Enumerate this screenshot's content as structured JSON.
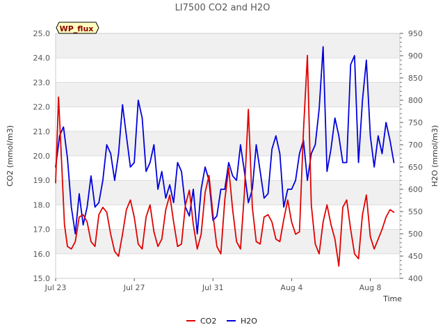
{
  "chart_data": {
    "type": "line",
    "title": "LI7500 CO2 and H2O",
    "xlabel": "Time",
    "ylabel_left": "CO2 (mmol/m3)",
    "ylabel_right": "H2O (mmol/m3)",
    "badge": "WP_flux",
    "x_ticks": [
      "Jul 23",
      "Jul 27",
      "Jul 31",
      "Aug 4",
      "Aug 8"
    ],
    "x_tick_days": [
      0,
      4,
      8,
      12,
      16
    ],
    "x_range_days": [
      0,
      17.5
    ],
    "y_left_ticks": [
      "15.0",
      "16.0",
      "17.0",
      "18.0",
      "19.0",
      "20.0",
      "21.0",
      "22.0",
      "23.0",
      "24.0",
      "25.0"
    ],
    "y_left_range": [
      15.0,
      25.0
    ],
    "y_right_ticks": [
      "400",
      "450",
      "500",
      "550",
      "600",
      "650",
      "700",
      "750",
      "800",
      "850",
      "900",
      "950"
    ],
    "y_right_range": [
      400,
      950
    ],
    "grid": true,
    "legend_position": "bottom-center",
    "colors": {
      "co2": "#e00000",
      "h2o": "#0000dd",
      "band": "#f0f0f0",
      "grid": "#dddddd",
      "badge_bg": "#ffffc0"
    },
    "series": [
      {
        "name": "CO2",
        "axis": "left",
        "x_days": [
          0.0,
          0.15,
          0.3,
          0.45,
          0.6,
          0.8,
          1.0,
          1.2,
          1.4,
          1.6,
          1.8,
          2.0,
          2.2,
          2.4,
          2.6,
          2.8,
          3.0,
          3.2,
          3.4,
          3.6,
          3.8,
          4.0,
          4.2,
          4.4,
          4.6,
          4.8,
          5.0,
          5.2,
          5.4,
          5.6,
          5.8,
          6.0,
          6.2,
          6.4,
          6.6,
          6.8,
          7.0,
          7.2,
          7.4,
          7.6,
          7.8,
          8.0,
          8.2,
          8.4,
          8.6,
          8.8,
          9.0,
          9.2,
          9.4,
          9.6,
          9.8,
          10.0,
          10.2,
          10.4,
          10.6,
          10.8,
          11.0,
          11.2,
          11.4,
          11.6,
          11.8,
          12.0,
          12.2,
          12.4,
          12.6,
          12.8,
          13.0,
          13.2,
          13.4,
          13.6,
          13.8,
          14.0,
          14.2,
          14.4,
          14.6,
          14.8,
          15.0,
          15.2,
          15.4,
          15.6,
          15.8,
          16.0,
          16.2,
          16.4,
          16.6,
          16.8,
          17.0,
          17.2
        ],
        "values": [
          18.9,
          22.4,
          19.8,
          17.2,
          16.3,
          16.2,
          16.5,
          17.5,
          17.6,
          17.3,
          16.5,
          16.3,
          17.6,
          17.9,
          17.7,
          16.8,
          16.1,
          15.9,
          16.8,
          17.8,
          18.2,
          17.5,
          16.4,
          16.2,
          17.5,
          18.0,
          16.9,
          16.3,
          16.6,
          17.8,
          18.4,
          17.3,
          16.3,
          16.4,
          18.0,
          18.6,
          17.2,
          16.2,
          16.8,
          18.5,
          19.2,
          17.6,
          16.3,
          16.0,
          18.2,
          19.5,
          17.8,
          16.5,
          16.2,
          18.5,
          21.9,
          17.9,
          16.5,
          16.4,
          17.5,
          17.6,
          17.3,
          16.6,
          16.5,
          17.4,
          18.2,
          17.3,
          16.8,
          16.9,
          21.0,
          24.1,
          18.0,
          16.4,
          16.0,
          17.3,
          18.0,
          17.2,
          16.6,
          15.5,
          17.9,
          18.2,
          17.0,
          16.0,
          15.8,
          17.6,
          18.4,
          16.7,
          16.2,
          16.6,
          17.0,
          17.5,
          17.8,
          17.7
        ]
      },
      {
        "name": "H2O",
        "axis": "right",
        "x_days": [
          0.0,
          0.2,
          0.4,
          0.6,
          0.8,
          1.0,
          1.2,
          1.4,
          1.6,
          1.8,
          2.0,
          2.2,
          2.4,
          2.6,
          2.8,
          3.0,
          3.2,
          3.4,
          3.6,
          3.8,
          4.0,
          4.2,
          4.4,
          4.6,
          4.8,
          5.0,
          5.2,
          5.4,
          5.6,
          5.8,
          6.0,
          6.2,
          6.4,
          6.6,
          6.8,
          7.0,
          7.2,
          7.4,
          7.6,
          7.8,
          8.0,
          8.2,
          8.4,
          8.6,
          8.8,
          9.0,
          9.2,
          9.4,
          9.6,
          9.8,
          10.0,
          10.2,
          10.4,
          10.6,
          10.8,
          11.0,
          11.2,
          11.4,
          11.6,
          11.8,
          12.0,
          12.2,
          12.4,
          12.6,
          12.8,
          13.0,
          13.2,
          13.4,
          13.6,
          13.8,
          14.0,
          14.2,
          14.4,
          14.6,
          14.8,
          15.0,
          15.2,
          15.4,
          15.6,
          15.8,
          16.0,
          16.2,
          16.4,
          16.6,
          16.8,
          17.0,
          17.2
        ],
        "values": [
          650,
          720,
          740,
          670,
          560,
          500,
          590,
          520,
          560,
          630,
          560,
          570,
          620,
          700,
          680,
          620,
          680,
          790,
          720,
          650,
          660,
          800,
          760,
          640,
          660,
          700,
          600,
          640,
          580,
          610,
          570,
          660,
          640,
          560,
          540,
          600,
          500,
          600,
          650,
          620,
          530,
          540,
          600,
          600,
          660,
          630,
          620,
          700,
          640,
          570,
          600,
          700,
          640,
          580,
          590,
          690,
          720,
          680,
          560,
          600,
          600,
          620,
          680,
          710,
          620,
          680,
          700,
          780,
          920,
          640,
          690,
          760,
          720,
          660,
          660,
          880,
          900,
          660,
          800,
          890,
          720,
          650,
          720,
          680,
          750,
          710,
          660
        ]
      }
    ]
  },
  "legend": {
    "co2_label": "CO2",
    "h2o_label": "H2O"
  }
}
